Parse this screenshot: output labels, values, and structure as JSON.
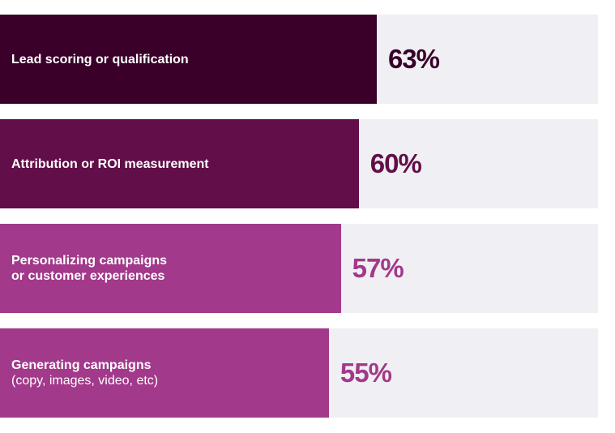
{
  "chart_data": {
    "type": "bar",
    "orientation": "horizontal",
    "xlim": [
      0,
      100
    ],
    "grid": false,
    "categories": [
      {
        "lines": [
          "Lead scoring or qualification"
        ],
        "sub": ""
      },
      {
        "lines": [
          "Attribution or ROI measurement"
        ],
        "sub": ""
      },
      {
        "lines": [
          "Personalizing campaigns",
          "or customer experiences"
        ],
        "sub": ""
      },
      {
        "lines": [
          "Generating campaigns"
        ],
        "sub": "(copy, images, video, etc)"
      }
    ],
    "values": [
      63,
      60,
      57,
      55
    ],
    "value_labels": [
      "63%",
      "60%",
      "57%",
      "55%"
    ],
    "colors": [
      "#3a0029",
      "#620e48",
      "#a2398a",
      "#a2398a"
    ],
    "track_color": "#f0f0f4"
  }
}
